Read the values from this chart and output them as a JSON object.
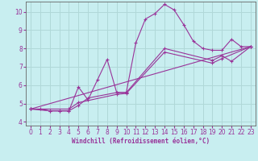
{
  "xlabel": "Windchill (Refroidissement éolien,°C)",
  "bg_color": "#c8eef0",
  "line_color": "#993399",
  "grid_color": "#b0d8d8",
  "xlim": [
    -0.5,
    23.5
  ],
  "ylim": [
    3.8,
    10.55
  ],
  "xticks": [
    0,
    1,
    2,
    3,
    4,
    5,
    6,
    7,
    8,
    9,
    10,
    11,
    12,
    13,
    14,
    15,
    16,
    17,
    18,
    19,
    20,
    21,
    22,
    23
  ],
  "yticks": [
    4,
    5,
    6,
    7,
    8,
    9,
    10
  ],
  "series": [
    {
      "x": [
        0,
        1,
        2,
        3,
        4,
        5,
        6,
        7,
        8,
        9,
        10,
        11,
        12,
        13,
        14,
        15,
        16,
        17,
        18,
        19,
        20,
        21,
        22,
        23
      ],
      "y": [
        4.7,
        4.7,
        4.6,
        4.6,
        4.6,
        5.9,
        5.2,
        6.3,
        7.4,
        5.6,
        5.6,
        8.3,
        9.6,
        9.9,
        10.4,
        10.1,
        9.3,
        8.4,
        8.0,
        7.9,
        7.9,
        8.5,
        8.1,
        8.1
      ]
    },
    {
      "x": [
        0,
        2,
        3,
        4,
        5,
        6,
        9,
        10,
        14,
        19,
        20,
        21,
        23
      ],
      "y": [
        4.7,
        4.6,
        4.6,
        4.6,
        4.9,
        5.3,
        5.6,
        5.6,
        8.0,
        7.35,
        7.6,
        7.3,
        8.1
      ]
    },
    {
      "x": [
        0,
        23
      ],
      "y": [
        4.7,
        8.1
      ]
    },
    {
      "x": [
        0,
        4,
        5,
        9,
        10,
        14,
        19,
        20,
        23
      ],
      "y": [
        4.7,
        4.7,
        5.05,
        5.5,
        5.55,
        7.8,
        7.2,
        7.45,
        8.1
      ]
    }
  ]
}
